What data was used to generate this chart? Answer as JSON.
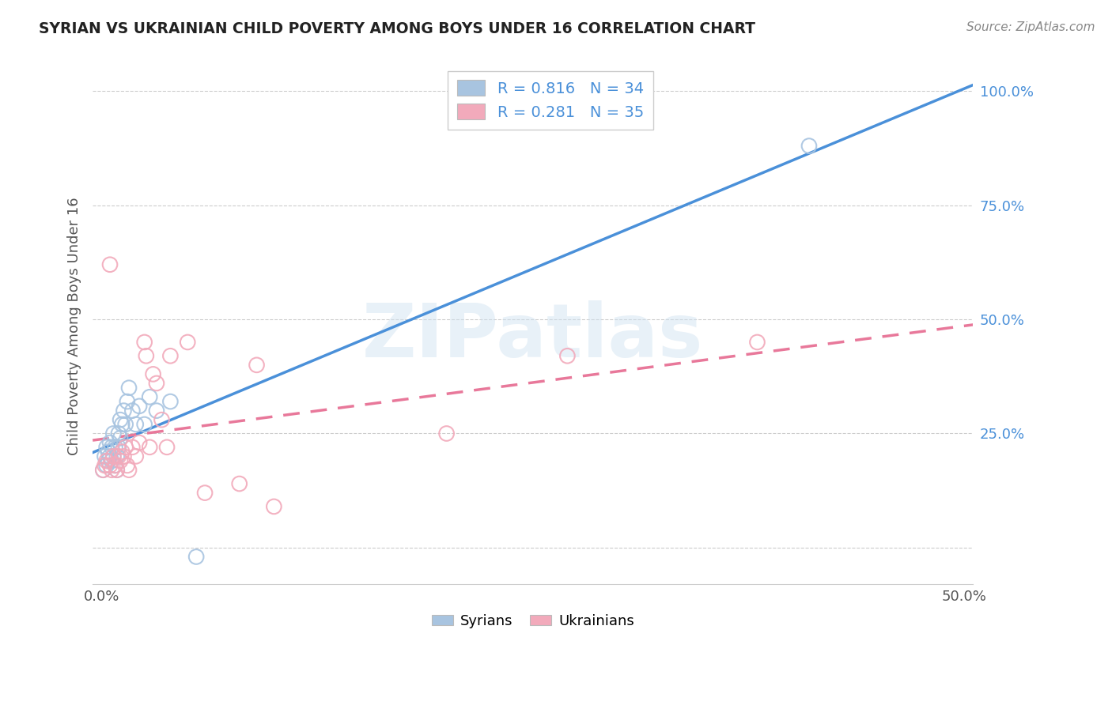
{
  "title": "SYRIAN VS UKRAINIAN CHILD POVERTY AMONG BOYS UNDER 16 CORRELATION CHART",
  "source": "Source: ZipAtlas.com",
  "ylabel": "Child Poverty Among Boys Under 16",
  "watermark": "ZIPatlas",
  "xlim": [
    -0.005,
    0.505
  ],
  "ylim": [
    -0.08,
    1.05
  ],
  "xticks": [
    0.0,
    0.1,
    0.2,
    0.3,
    0.4,
    0.5
  ],
  "xtick_labels": [
    "0.0%",
    "",
    "",
    "",
    "",
    "50.0%"
  ],
  "yticks_right": [
    0.0,
    0.25,
    0.5,
    0.75,
    1.0
  ],
  "ytick_labels_right": [
    "",
    "25.0%",
    "50.0%",
    "75.0%",
    "100.0%"
  ],
  "syrians_R": 0.816,
  "syrians_N": 34,
  "ukrainians_R": 0.281,
  "ukrainians_N": 35,
  "syrians_color": "#a8c4e0",
  "ukrainians_color": "#f2aabb",
  "syrians_line_color": "#4a90d9",
  "ukrainians_line_color": "#e8789a",
  "syrians_x": [
    0.001,
    0.002,
    0.003,
    0.003,
    0.004,
    0.004,
    0.005,
    0.005,
    0.006,
    0.006,
    0.007,
    0.007,
    0.008,
    0.008,
    0.009,
    0.009,
    0.01,
    0.01,
    0.011,
    0.011,
    0.012,
    0.013,
    0.014,
    0.015,
    0.016,
    0.018,
    0.02,
    0.022,
    0.025,
    0.028,
    0.032,
    0.04,
    0.055,
    0.41
  ],
  "syrians_y": [
    0.17,
    0.2,
    0.22,
    0.18,
    0.19,
    0.21,
    0.2,
    0.23,
    0.22,
    0.19,
    0.2,
    0.25,
    0.22,
    0.18,
    0.17,
    0.2,
    0.22,
    0.25,
    0.28,
    0.24,
    0.27,
    0.3,
    0.27,
    0.32,
    0.35,
    0.3,
    0.27,
    0.31,
    0.27,
    0.33,
    0.3,
    0.32,
    -0.02,
    0.88
  ],
  "ukrainians_x": [
    0.001,
    0.002,
    0.003,
    0.005,
    0.005,
    0.006,
    0.007,
    0.008,
    0.009,
    0.01,
    0.011,
    0.012,
    0.013,
    0.014,
    0.015,
    0.016,
    0.018,
    0.02,
    0.022,
    0.025,
    0.026,
    0.028,
    0.03,
    0.032,
    0.035,
    0.038,
    0.04,
    0.05,
    0.06,
    0.08,
    0.09,
    0.1,
    0.2,
    0.27,
    0.38
  ],
  "ukrainians_y": [
    0.17,
    0.18,
    0.19,
    0.62,
    0.18,
    0.17,
    0.2,
    0.18,
    0.17,
    0.2,
    0.19,
    0.21,
    0.2,
    0.22,
    0.18,
    0.17,
    0.22,
    0.2,
    0.23,
    0.45,
    0.42,
    0.22,
    0.38,
    0.36,
    0.28,
    0.22,
    0.42,
    0.45,
    0.12,
    0.14,
    0.4,
    0.09,
    0.25,
    0.42,
    0.45
  ],
  "background_color": "#ffffff",
  "grid_color": "#cccccc"
}
